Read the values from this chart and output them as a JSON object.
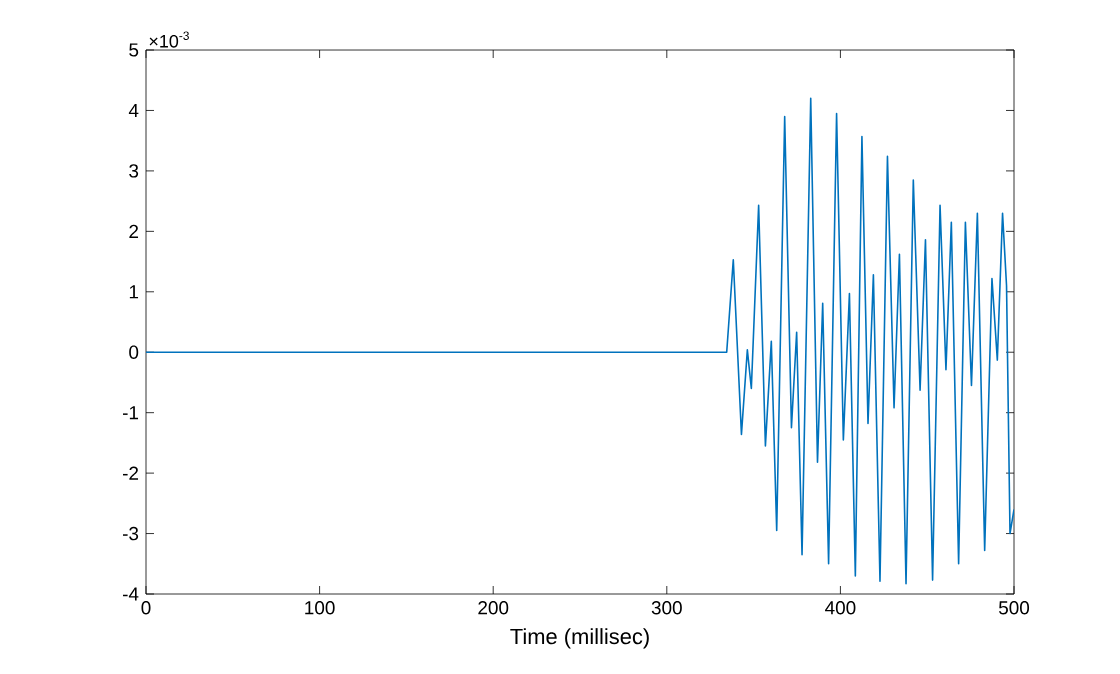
{
  "chart_data": {
    "type": "line",
    "xlabel": "Time (millisec)",
    "annotations": [
      "×10$^{-3}$"
    ],
    "x": [
      0,
      334.5,
      338.3,
      343,
      346.4,
      348.7,
      352.9,
      356.8,
      360.2,
      363.3,
      367.9,
      371.8,
      374.8,
      377.9,
      382.9,
      386.8,
      389.8,
      393.2,
      397.8,
      401.7,
      405.2,
      408.6,
      412.4,
      415.9,
      419,
      422.8,
      427.1,
      430.9,
      434,
      437.8,
      442,
      445.9,
      449,
      453.1,
      457.4,
      460.8,
      463.9,
      468.1,
      472,
      475.5,
      478.9,
      483.1,
      487.3,
      490.4,
      493.4,
      495.7,
      497.7,
      500
    ],
    "series": [
      {
        "color": "#0072bd",
        "values": [
          0,
          0,
          1.53,
          -1.36,
          0.04,
          -0.6,
          2.43,
          -1.55,
          0.18,
          -2.95,
          3.9,
          -1.25,
          0.33,
          -3.35,
          4.2,
          -1.82,
          0.81,
          -3.5,
          3.95,
          -1.45,
          0.97,
          -3.7,
          3.57,
          -1.18,
          1.28,
          -3.79,
          3.24,
          -0.92,
          1.62,
          -3.83,
          2.85,
          -0.63,
          1.86,
          -3.77,
          2.43,
          -0.29,
          2.15,
          -3.5,
          2.15,
          -0.55,
          2.3,
          -3.28,
          1.22,
          -0.13,
          2.3,
          1.1,
          -3.0,
          -2.6
        ]
      }
    ],
    "xlim": [
      0,
      500
    ],
    "ylim": [
      -4,
      5
    ],
    "xticks": [
      0,
      100,
      200,
      300,
      400,
      500
    ],
    "yticks": [
      -4,
      -3,
      -2,
      -1,
      0,
      1,
      2,
      3,
      4,
      5
    ],
    "grid": false,
    "marker": "none",
    "line_style": "solid"
  }
}
